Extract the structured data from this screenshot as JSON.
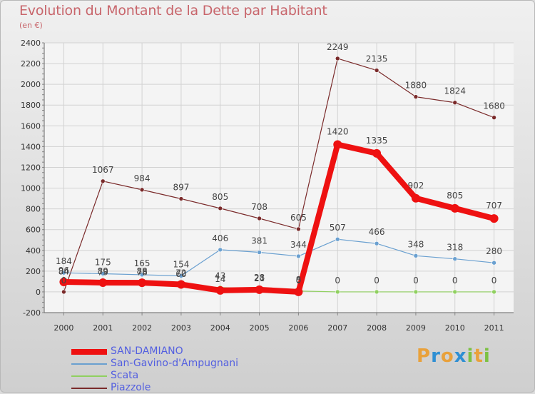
{
  "header": {
    "title": "Evolution du Montant de la Dette par Habitant",
    "subtitle": "(en €)"
  },
  "brand": {
    "letters": [
      "P",
      "r",
      "o",
      "x",
      "i",
      "t",
      "i"
    ],
    "colors": [
      "#e9a13b",
      "#2f8fd3",
      "#e9a13b",
      "#2f8fd3",
      "#7cc142",
      "#e9a13b",
      "#7cc142"
    ]
  },
  "chart_data": {
    "type": "line",
    "categories": [
      "2000",
      "2001",
      "2002",
      "2003",
      "2004",
      "2005",
      "2006",
      "2007",
      "2008",
      "2009",
      "2010",
      "2011"
    ],
    "ylim": [
      -200,
      2400
    ],
    "yticks": [
      "-200",
      "0",
      "200",
      "400",
      "600",
      "800",
      "1000",
      "1200",
      "1400",
      "1600",
      "1800",
      "2000",
      "2200",
      "2400"
    ],
    "grid": true,
    "legend_position": "bottom-left",
    "series": [
      {
        "name": "SAN-DAMIANO",
        "color": "#ee1111",
        "values": [
          96,
          89,
          88,
          72,
          14,
          21,
          0,
          1420,
          1335,
          902,
          805,
          707
        ],
        "labels": [
          "96",
          "89",
          "88",
          "72",
          "14",
          "21",
          "0",
          "1420",
          "1335",
          "902",
          "805",
          "707"
        ]
      },
      {
        "name": "San-Gavino-d'Ampugnani",
        "color": "#6aa0d0",
        "values": [
          184,
          175,
          165,
          154,
          406,
          381,
          344,
          507,
          466,
          348,
          318,
          280
        ],
        "labels": [
          "184",
          "175",
          "165",
          "154",
          "406",
          "381",
          "344",
          "507",
          "466",
          "348",
          "318",
          "280"
        ]
      },
      {
        "name": "Scata",
        "color": "#90d060",
        "values": [
          84,
          79,
          78,
          60,
          43,
          28,
          8,
          0,
          0,
          0,
          0,
          0
        ],
        "labels": [
          "84",
          "79",
          "78",
          "60",
          "43",
          "28",
          "8",
          "0",
          "0",
          "0",
          "0",
          "0"
        ]
      },
      {
        "name": "Piazzole",
        "color": "#7a2a2a",
        "values": [
          0,
          1067,
          984,
          897,
          805,
          708,
          605,
          2249,
          2135,
          1880,
          1824,
          1680
        ],
        "labels": [
          "0",
          "1067",
          "984",
          "897",
          "805",
          "708",
          "605",
          "2249",
          "2135",
          "1880",
          "1824",
          "1680"
        ]
      }
    ]
  }
}
